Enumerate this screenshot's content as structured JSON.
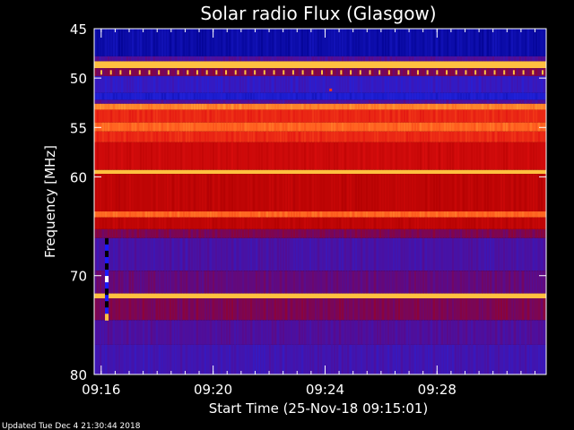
{
  "chart_data": {
    "type": "heatmap",
    "title": "Solar radio Flux (Glasgow)",
    "xlabel": "Start Time (25-Nov-18 09:15:01)",
    "ylabel": "Frequency [MHz]",
    "x_start": "09:15:01",
    "x_end": "09:31:10",
    "xlim_minutes_after_0915": [
      0.75,
      16.9
    ],
    "ylim": [
      45,
      80
    ],
    "y_inverted": true,
    "x_ticks": [
      "09:16",
      "09:20",
      "09:24",
      "09:28"
    ],
    "x_tick_minutes_after_0915": [
      1,
      5,
      9,
      13
    ],
    "y_ticks": [
      45,
      50,
      55,
      60,
      70,
      80
    ],
    "colormap": [
      "#00008c",
      "#2222dd",
      "#5a0a8a",
      "#b00000",
      "#e01010",
      "#ff5a1e",
      "#ffc040"
    ],
    "bands_mhz": [
      {
        "from": 45.0,
        "to": 47.8,
        "level": 0.06
      },
      {
        "from": 47.8,
        "to": 48.3,
        "level": 0.3
      },
      {
        "from": 48.3,
        "to": 49.0,
        "level": 1.0
      },
      {
        "from": 49.0,
        "to": 49.8,
        "level": 0.4
      },
      {
        "from": 49.8,
        "to": 51.5,
        "level": 0.22
      },
      {
        "from": 51.5,
        "to": 52.2,
        "level": 0.14
      },
      {
        "from": 52.2,
        "to": 52.6,
        "level": 0.3
      },
      {
        "from": 52.6,
        "to": 53.2,
        "level": 0.9
      },
      {
        "from": 53.2,
        "to": 54.5,
        "level": 0.72
      },
      {
        "from": 54.5,
        "to": 55.4,
        "level": 0.85
      },
      {
        "from": 55.4,
        "to": 56.5,
        "level": 0.72
      },
      {
        "from": 56.5,
        "to": 59.3,
        "level": 0.6
      },
      {
        "from": 59.3,
        "to": 59.7,
        "level": 1.0
      },
      {
        "from": 59.7,
        "to": 63.5,
        "level": 0.55
      },
      {
        "from": 63.5,
        "to": 64.1,
        "level": 0.85
      },
      {
        "from": 64.1,
        "to": 65.3,
        "level": 0.55
      },
      {
        "from": 65.3,
        "to": 66.2,
        "level": 0.4
      },
      {
        "from": 66.2,
        "to": 69.5,
        "level": 0.28
      },
      {
        "from": 69.5,
        "to": 71.8,
        "level": 0.35
      },
      {
        "from": 71.8,
        "to": 72.3,
        "level": 1.0
      },
      {
        "from": 72.3,
        "to": 74.5,
        "level": 0.4
      },
      {
        "from": 74.5,
        "to": 77.0,
        "level": 0.3
      },
      {
        "from": 77.0,
        "to": 80.0,
        "level": 0.26
      }
    ],
    "features": [
      {
        "kind": "interference-column",
        "minute": 1.2,
        "from_mhz": 66.2,
        "to_mhz": 74.5
      },
      {
        "kind": "periodic-spikes",
        "mhz": 49.2,
        "count": 47
      },
      {
        "kind": "spot",
        "minute": 9.2,
        "mhz": 51.2
      }
    ]
  },
  "footer": {
    "updated": "Updated Tue Dec  4 21:30:44 2018"
  }
}
